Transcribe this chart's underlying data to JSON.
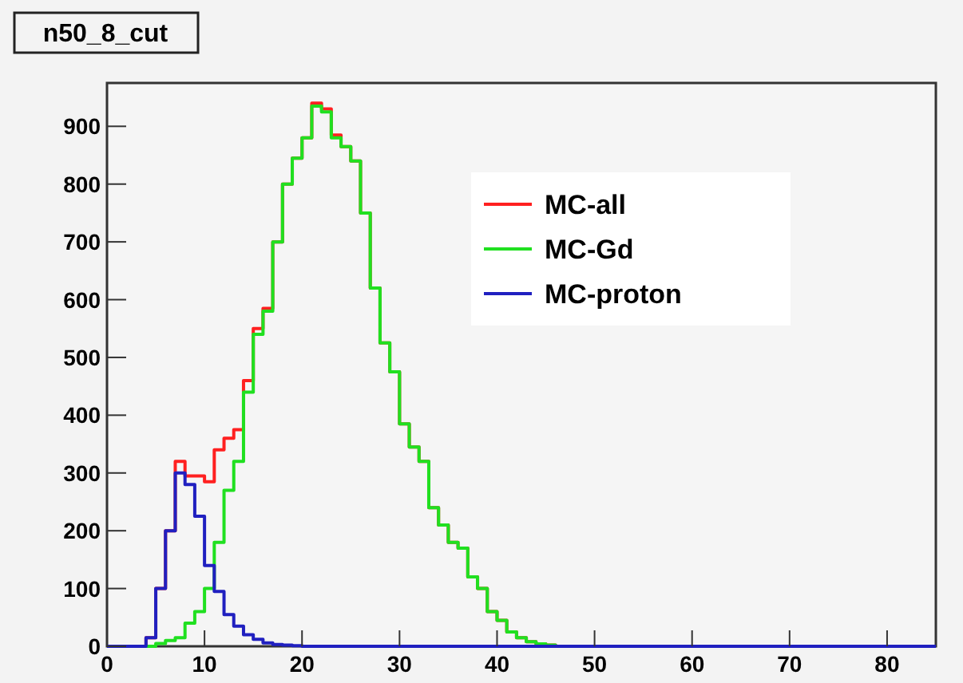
{
  "chart_data": {
    "type": "histogram",
    "title": "n50_8_cut",
    "bins": [
      0,
      1,
      2,
      3,
      4,
      5,
      6,
      7,
      8,
      9,
      10,
      11,
      12,
      13,
      14,
      15,
      16,
      17,
      18,
      19,
      20,
      21,
      22,
      23,
      24,
      25,
      26,
      27,
      28,
      29,
      30,
      31,
      32,
      33,
      34,
      35,
      36,
      37,
      38,
      39,
      40,
      41,
      42,
      43,
      44,
      45,
      46,
      47,
      48,
      49,
      50,
      51,
      52,
      53,
      54,
      55,
      56,
      57,
      58,
      59,
      60,
      61,
      62,
      63,
      64,
      65,
      66,
      67,
      68,
      69,
      70,
      71,
      72,
      73,
      74,
      75,
      76,
      77,
      78,
      79,
      80,
      81,
      82,
      83,
      84,
      85
    ],
    "series": [
      {
        "name": "MC-all",
        "color": "#ff2020",
        "values": [
          0,
          0,
          0,
          0,
          15,
          100,
          200,
          320,
          295,
          295,
          285,
          340,
          360,
          375,
          460,
          550,
          585,
          700,
          800,
          845,
          880,
          940,
          930,
          885,
          865,
          840,
          750,
          620,
          525,
          475,
          385,
          345,
          320,
          240,
          210,
          180,
          170,
          120,
          100,
          60,
          45,
          25,
          15,
          8,
          4,
          2,
          0,
          0,
          0,
          0,
          0,
          0,
          0,
          0,
          0,
          0,
          0,
          0,
          0,
          0,
          0,
          0,
          0,
          0,
          0,
          0,
          0,
          0,
          0,
          0,
          0,
          0,
          0,
          0,
          0,
          0,
          0,
          0,
          0,
          0,
          0,
          0,
          0,
          0,
          0
        ]
      },
      {
        "name": "MC-Gd",
        "color": "#20e020",
        "values": [
          0,
          0,
          0,
          0,
          0,
          5,
          10,
          15,
          40,
          60,
          100,
          180,
          270,
          320,
          440,
          540,
          580,
          700,
          800,
          845,
          880,
          935,
          925,
          880,
          865,
          840,
          750,
          620,
          525,
          475,
          385,
          345,
          320,
          240,
          210,
          180,
          170,
          120,
          100,
          60,
          45,
          25,
          15,
          8,
          4,
          2,
          0,
          0,
          0,
          0,
          0,
          0,
          0,
          0,
          0,
          0,
          0,
          0,
          0,
          0,
          0,
          0,
          0,
          0,
          0,
          0,
          0,
          0,
          0,
          0,
          0,
          0,
          0,
          0,
          0,
          0,
          0,
          0,
          0,
          0,
          0,
          0,
          0,
          0,
          0
        ]
      },
      {
        "name": "MC-proton",
        "color": "#2020c0",
        "values": [
          0,
          0,
          0,
          0,
          15,
          100,
          200,
          300,
          280,
          225,
          140,
          95,
          55,
          35,
          20,
          12,
          6,
          3,
          2,
          1,
          0,
          0,
          0,
          0,
          0,
          0,
          0,
          0,
          0,
          0,
          0,
          0,
          0,
          0,
          0,
          0,
          0,
          0,
          0,
          0,
          0,
          0,
          0,
          0,
          0,
          0,
          0,
          0,
          0,
          0,
          0,
          0,
          0,
          0,
          0,
          0,
          0,
          0,
          0,
          0,
          0,
          0,
          0,
          0,
          0,
          0,
          0,
          0,
          0,
          0,
          0,
          0,
          0,
          0,
          0,
          0,
          0,
          0,
          0,
          0,
          0,
          0,
          0,
          0,
          0
        ]
      }
    ],
    "xlim": [
      0,
      85
    ],
    "ylim": [
      0,
      975
    ],
    "xticks": [
      0,
      10,
      20,
      30,
      40,
      50,
      60,
      70,
      80
    ],
    "yticks": [
      0,
      100,
      200,
      300,
      400,
      500,
      600,
      700,
      800,
      900
    ],
    "legend": "top right",
    "grid": false
  }
}
